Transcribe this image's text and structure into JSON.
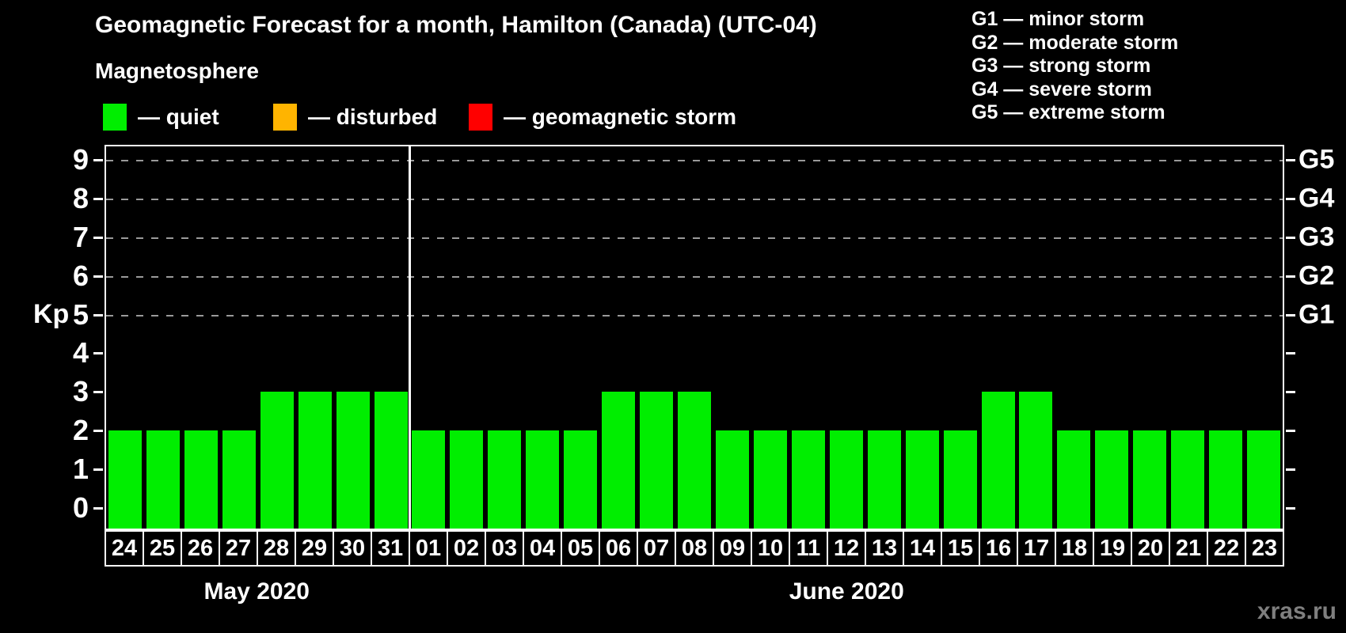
{
  "header": {
    "title": "Geomagnetic Forecast for a month, Hamilton (Canada) (UTC-04)",
    "subtitle": "Magnetosphere"
  },
  "legend": {
    "items": [
      {
        "name": "quiet",
        "label": "— quiet",
        "color": "#00ee00"
      },
      {
        "name": "disturbed",
        "label": "— disturbed",
        "color": "#ffb400"
      },
      {
        "name": "geomagnetic-storm",
        "label": "— geomagnetic storm",
        "color": "#ff0000"
      }
    ]
  },
  "g_scale_legend": {
    "items": [
      "G1 — minor storm",
      "G2 — moderate storm",
      "G3 — strong storm",
      "G4 — severe storm",
      "G5 — extreme storm"
    ]
  },
  "watermark": "xras.ru",
  "chart_data": {
    "type": "bar",
    "title": "Geomagnetic Forecast for a month, Hamilton (Canada) (UTC-04)",
    "ylabel": "Kp",
    "ylim": [
      0,
      9
    ],
    "yticks_left": [
      0,
      1,
      2,
      3,
      4,
      5,
      6,
      7,
      8,
      9
    ],
    "right_axis_labels": [
      {
        "kp": 5,
        "label": "G1"
      },
      {
        "kp": 6,
        "label": "G2"
      },
      {
        "kp": 7,
        "label": "G3"
      },
      {
        "kp": 8,
        "label": "G4"
      },
      {
        "kp": 9,
        "label": "G5"
      }
    ],
    "gridlines_at_kp": [
      5,
      6,
      7,
      8,
      9
    ],
    "grid_style": "dashed gray horizontal lines at storm thresholds",
    "bar_color": "#00ee00",
    "bar_color_meaning": "quiet",
    "months": [
      {
        "label": "May 2020",
        "days": [
          "24",
          "25",
          "26",
          "27",
          "28",
          "29",
          "30",
          "31"
        ],
        "values": [
          2,
          2,
          2,
          2,
          3,
          3,
          3,
          3
        ]
      },
      {
        "label": "June 2020",
        "days": [
          "01",
          "02",
          "03",
          "04",
          "05",
          "06",
          "07",
          "08",
          "09",
          "10",
          "11",
          "12",
          "13",
          "14",
          "15",
          "16",
          "17",
          "18",
          "19",
          "20",
          "21",
          "22",
          "23"
        ],
        "values": [
          2,
          2,
          2,
          2,
          2,
          3,
          3,
          3,
          2,
          2,
          2,
          2,
          2,
          2,
          2,
          3,
          3,
          2,
          2,
          2,
          2,
          2,
          2
        ]
      }
    ]
  }
}
